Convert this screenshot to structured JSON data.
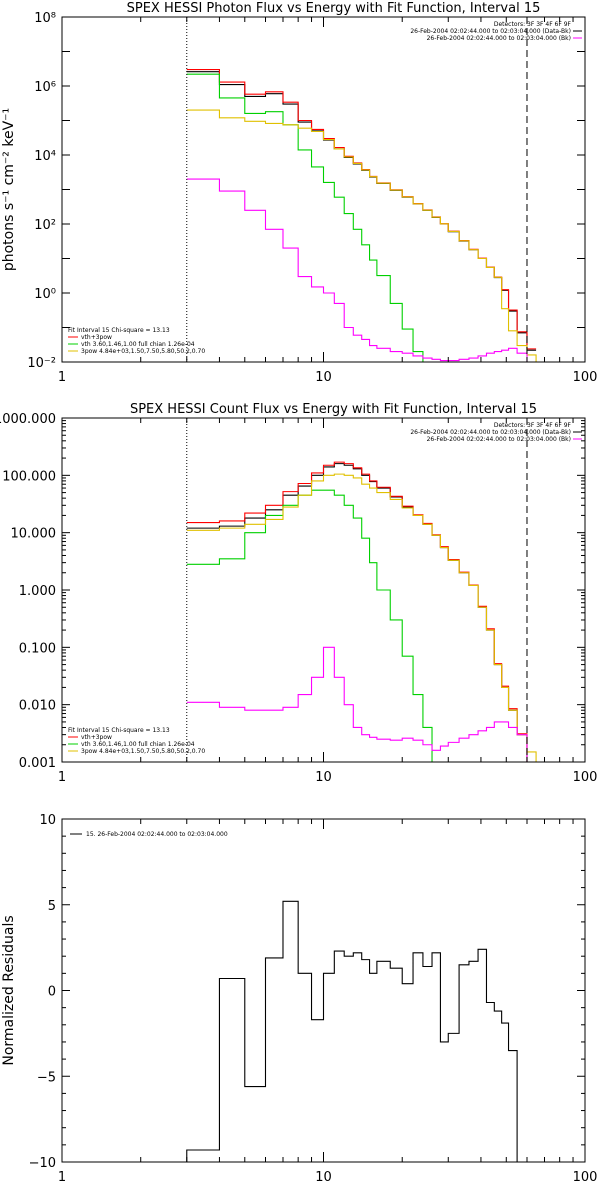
{
  "chart_data": [
    {
      "type": "line",
      "title": "SPEX HESSI Photon Flux vs Energy with Fit Function, Interval 15",
      "ylabel": "photons s⁻¹ cm⁻² keV⁻¹",
      "xlabel": "",
      "xscale": "log",
      "yscale": "log",
      "xlim": [
        1,
        100
      ],
      "ylim": [
        0.01,
        100000000
      ],
      "xticks": [
        1,
        10,
        100
      ],
      "xtick_labels": [
        "1",
        "10",
        "100"
      ],
      "yticks": [
        0.01,
        1,
        100,
        10000,
        1000000,
        100000000
      ],
      "ytick_labels": [
        "10⁻²",
        "10⁰",
        "10²",
        "10⁴",
        "10⁶",
        "10⁸"
      ],
      "vlines": [
        {
          "x": 3,
          "style": "dotted"
        },
        {
          "x": 60,
          "style": "dashed"
        }
      ],
      "legend_right": {
        "lines": [
          {
            "text": "Detectors: 3F 3F 4F 6F 9F",
            "color": ""
          },
          {
            "text": "26-Feb-2004 02:02:44.000 to 02:03:04.000 (Data-Bk)",
            "color": "#000000"
          },
          {
            "text": "26-Feb-2004 02:02:44.000 to 02:03:04.000 (Bk)",
            "color": "#ff00ff"
          }
        ]
      },
      "legend_left": {
        "lines": [
          {
            "text": "Fit Interval 15   Chi-square = 13.13",
            "color": ""
          },
          {
            "text": "vth+3pow",
            "color": "#ff0000"
          },
          {
            "text": "vth 3.60,1.46,1.00   full chian 1.26e-04",
            "color": "#00d000"
          },
          {
            "text": "3pow 4.84e+03,1.50,7.50,5.80,50.2,0.70",
            "color": "#e0c000"
          }
        ]
      },
      "edges": [
        3,
        4,
        5,
        6,
        7,
        8,
        9,
        10,
        11,
        12,
        13,
        14,
        15,
        16,
        18,
        20,
        22,
        24,
        26,
        28,
        30,
        33,
        36,
        39,
        42,
        45,
        48,
        51,
        55,
        60,
        65,
        72
      ],
      "series": [
        {
          "name": "Data-Bk",
          "color": "#000000",
          "values": [
            2600000,
            1100000,
            500000,
            600000,
            300000,
            90000,
            50000,
            27000,
            15000,
            8500,
            5500,
            3600,
            2300,
            1500,
            950,
            600,
            380,
            250,
            155,
            100,
            60,
            32,
            18,
            10,
            5.5,
            2.8,
            1.2,
            0.3,
            0.07,
            0.022,
            null
          ]
        },
        {
          "name": "vth+3pow",
          "color": "#ff0000",
          "values": [
            3000000,
            1300000,
            580000,
            680000,
            340000,
            100000,
            55000,
            30000,
            16500,
            9200,
            5900,
            3800,
            2400,
            1550,
            980,
            620,
            390,
            255,
            160,
            102,
            62,
            33,
            18.5,
            10.2,
            5.6,
            2.9,
            1.25,
            0.32,
            0.075,
            0.024,
            null
          ]
        },
        {
          "name": "vth",
          "color": "#00d000",
          "values": [
            2200000,
            450000,
            160000,
            180000,
            75000,
            14000,
            4500,
            1600,
            600,
            200,
            70,
            25,
            9,
            3.2,
            0.5,
            0.09,
            0.02,
            0.006,
            null,
            null,
            null,
            null,
            null,
            null,
            null,
            null,
            null,
            null,
            null,
            null,
            null
          ]
        },
        {
          "name": "3pow",
          "color": "#e0c000",
          "values": [
            200000,
            120000,
            95000,
            82000,
            75000,
            60000,
            48000,
            28000,
            15000,
            8800,
            5700,
            3700,
            2350,
            1520,
            965,
            610,
            385,
            252,
            158,
            101,
            61,
            32.5,
            18,
            10,
            5.5,
            2.85,
            0.35,
            0.08,
            0.03,
            0.016,
            0.01
          ]
        },
        {
          "name": "Bk",
          "color": "#ff00ff",
          "values": [
            2000,
            900,
            250,
            70,
            20,
            3,
            1.5,
            1.0,
            0.5,
            0.1,
            0.06,
            0.045,
            0.03,
            0.025,
            0.02,
            0.018,
            0.015,
            0.013,
            0.012,
            0.011,
            0.011,
            0.012,
            0.013,
            0.015,
            0.018,
            0.02,
            0.022,
            0.025,
            0.018,
            0.01,
            null
          ]
        }
      ]
    },
    {
      "type": "line",
      "title": "SPEX HESSI Count Flux vs Energy with Fit Function, Interval 15",
      "ylabel": "",
      "xlabel": "",
      "xscale": "log",
      "yscale": "log",
      "xlim": [
        1,
        100
      ],
      "ylim": [
        0.001,
        1000
      ],
      "xticks": [
        1,
        10,
        100
      ],
      "xtick_labels": [
        "1",
        "10",
        "100"
      ],
      "yticks": [
        0.001,
        0.01,
        0.1,
        1,
        10,
        100,
        1000
      ],
      "ytick_labels": [
        "0.001",
        "0.010",
        "0.100",
        "1.000",
        "10.000",
        "100.000",
        "1000.000"
      ],
      "vlines": [
        {
          "x": 3,
          "style": "dotted"
        },
        {
          "x": 60,
          "style": "dashed"
        }
      ],
      "legend_right": {
        "lines": [
          {
            "text": "Detectors: 3F 3F 4F 6F 9F",
            "color": ""
          },
          {
            "text": "26-Feb-2004 02:02:44.000 to 02:03:04.000 (Data-Bk)",
            "color": "#000000"
          },
          {
            "text": "26-Feb-2004 02:02:44.000 to 02:03:04.000 (Bk)",
            "color": "#ff00ff"
          }
        ]
      },
      "legend_left": {
        "lines": [
          {
            "text": "Fit Interval 15   Chi-square = 13.13",
            "color": ""
          },
          {
            "text": "vth+3pow",
            "color": "#ff0000"
          },
          {
            "text": "vth 3.60,1.46,1.00   full chian 1.26e-04",
            "color": "#00d000"
          },
          {
            "text": "3pow 4.84e+03,1.50,7.50,5.80,50.2,0.70",
            "color": "#e0c000"
          }
        ]
      },
      "edges": [
        3,
        4,
        5,
        6,
        7,
        8,
        9,
        10,
        11,
        12,
        13,
        14,
        15,
        16,
        18,
        20,
        22,
        24,
        26,
        28,
        30,
        33,
        36,
        39,
        42,
        45,
        48,
        51,
        55,
        60,
        65,
        72
      ],
      "series": [
        {
          "name": "Data-Bk",
          "color": "#000000",
          "values": [
            12,
            13,
            18,
            25,
            45,
            65,
            100,
            140,
            160,
            150,
            130,
            100,
            78,
            60,
            42,
            28,
            20,
            14,
            9,
            5.5,
            3.3,
            2,
            1.2,
            0.5,
            0.2,
            0.05,
            0.02,
            0.008,
            0.003,
            0.001,
            null
          ]
        },
        {
          "name": "vth+3pow",
          "color": "#ff0000",
          "values": [
            15,
            16,
            22,
            30,
            52,
            72,
            110,
            150,
            170,
            160,
            135,
            105,
            80,
            62,
            43,
            29,
            20.5,
            14.5,
            9.2,
            5.7,
            3.4,
            2.05,
            1.22,
            0.52,
            0.21,
            0.052,
            0.021,
            0.0085,
            0.0031,
            0.001,
            null
          ]
        },
        {
          "name": "vth",
          "color": "#00d000",
          "values": [
            2.8,
            3.5,
            10,
            20,
            30,
            45,
            55,
            55,
            45,
            30,
            18,
            8,
            3,
            1,
            0.3,
            0.07,
            0.015,
            0.004,
            0.001,
            null,
            null,
            null,
            null,
            null,
            null,
            null,
            null,
            null,
            null,
            null,
            null
          ]
        },
        {
          "name": "3pow",
          "color": "#e0c000",
          "values": [
            11,
            12,
            14,
            17,
            28,
            45,
            80,
            100,
            105,
            100,
            90,
            70,
            60,
            50,
            38,
            27,
            20,
            14,
            9,
            5.5,
            3.3,
            2,
            1.2,
            0.5,
            0.2,
            0.05,
            0.02,
            0.008,
            0.003,
            0.0015,
            0.001
          ]
        },
        {
          "name": "Bk",
          "color": "#ff00ff",
          "values": [
            0.011,
            0.009,
            0.008,
            0.008,
            0.009,
            0.015,
            0.03,
            0.1,
            0.03,
            0.01,
            0.004,
            0.003,
            0.0027,
            0.0025,
            0.0024,
            0.0026,
            0.0024,
            0.002,
            0.0016,
            0.0019,
            0.0022,
            0.0026,
            0.003,
            0.0035,
            0.004,
            0.005,
            0.005,
            0.004,
            0.003,
            0.001,
            null
          ]
        }
      ]
    },
    {
      "type": "line",
      "title": "",
      "ylabel": "Normalized Residuals",
      "xlabel": "",
      "xscale": "log",
      "yscale": "linear",
      "xlim": [
        1,
        100
      ],
      "ylim": [
        -10,
        10
      ],
      "xticks": [
        1,
        10,
        100
      ],
      "xtick_labels": [
        "1",
        "10",
        "100"
      ],
      "yticks": [
        -10,
        -5,
        0,
        5,
        10
      ],
      "ytick_labels": [
        "−10",
        "−5",
        "0",
        "5",
        "10"
      ],
      "legend_right": null,
      "legend_left": null,
      "inline_legend": "15. 26-Feb-2004 02:02:44.000 to 02:03:04.000",
      "edges": [
        3,
        4,
        5,
        6,
        7,
        8,
        9,
        10,
        11,
        12,
        13,
        14,
        15,
        16,
        18,
        20,
        22,
        24,
        26,
        28,
        30,
        33,
        36,
        39,
        42,
        45,
        48,
        51,
        55,
        60
      ],
      "series": [
        {
          "name": "",
          "color": "#000000",
          "values": [
            -9.3,
            0.7,
            -5.6,
            1.9,
            5.2,
            1.0,
            -1.7,
            1.0,
            2.3,
            2.0,
            2.2,
            1.8,
            1.0,
            1.7,
            1.3,
            0.4,
            2.2,
            1.4,
            2.2,
            -3.0,
            -2.5,
            1.5,
            1.7,
            2.4,
            -0.7,
            -1.2,
            -1.9,
            -3.5,
            -10
          ]
        }
      ]
    }
  ]
}
